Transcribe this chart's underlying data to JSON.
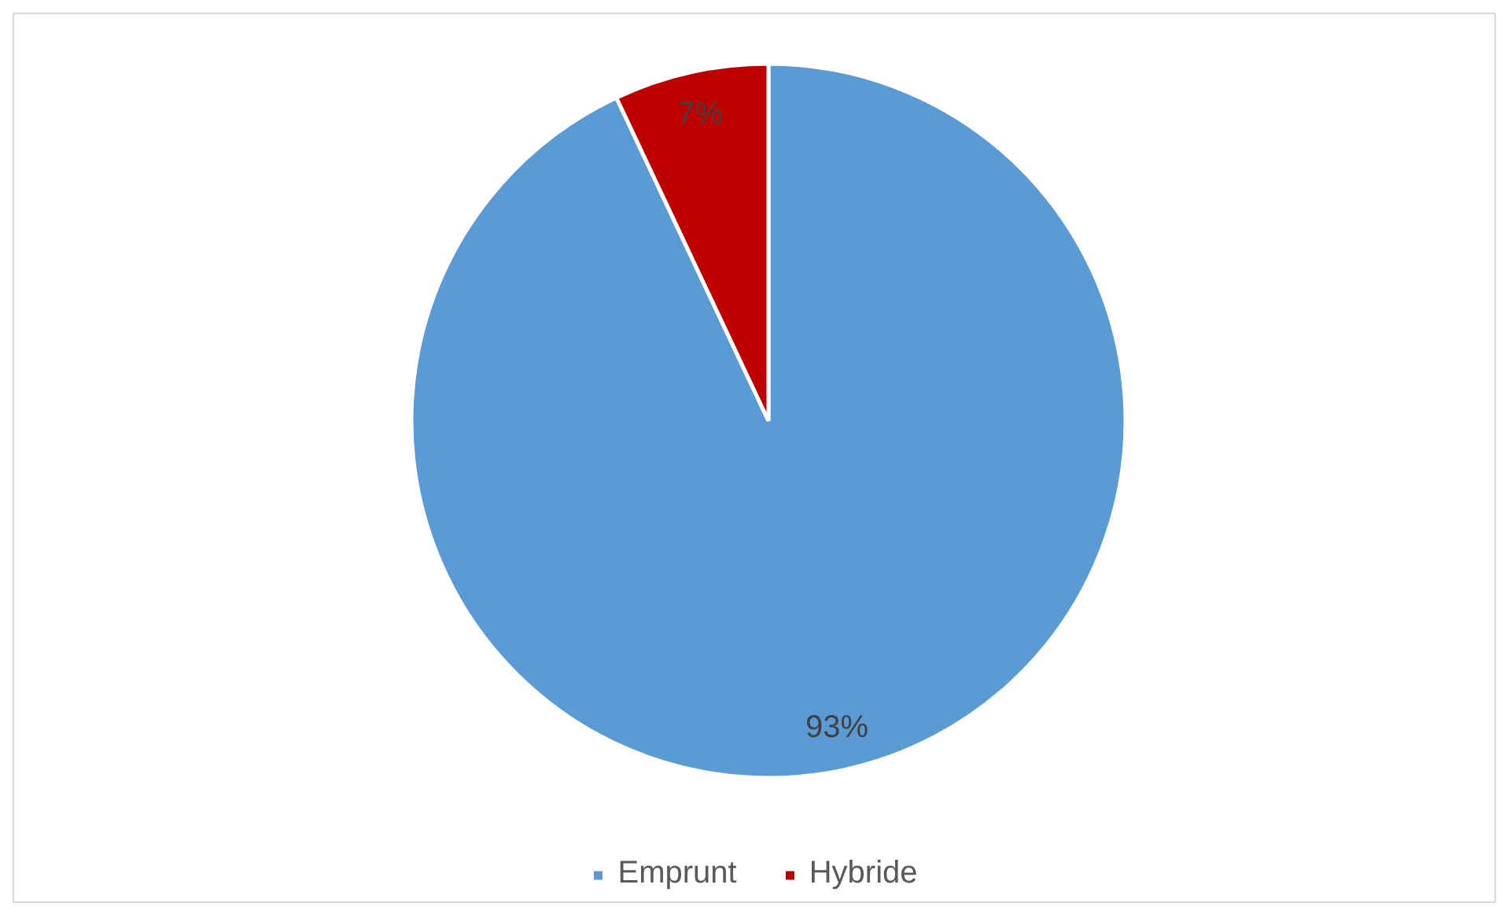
{
  "chart_data": {
    "type": "pie",
    "categories": [
      "Emprunt",
      "Hybride"
    ],
    "values": [
      93,
      7
    ],
    "colors": [
      "#5b9bd5",
      "#c00000"
    ],
    "value_labels": [
      "93%",
      "7%"
    ],
    "legend": "bottom"
  }
}
